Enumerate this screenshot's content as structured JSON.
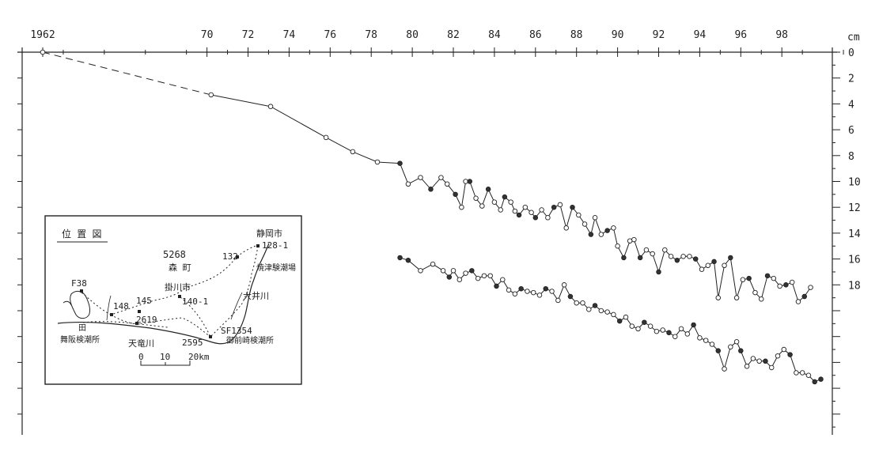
{
  "chart_data": {
    "type": "line",
    "x_tick_labels": [
      "1962",
      "70",
      "72",
      "74",
      "76",
      "78",
      "80",
      "82",
      "84",
      "86",
      "88",
      "90",
      "92",
      "94",
      "96",
      "98"
    ],
    "x_tick_values": [
      1962,
      1970,
      1972,
      1974,
      1976,
      1978,
      1980,
      1982,
      1984,
      1986,
      1988,
      1990,
      1992,
      1994,
      1996,
      1998
    ],
    "y_unit": "cm",
    "y_tick_labels": [
      "0",
      "2",
      "4",
      "6",
      "8",
      "10",
      "12",
      "14",
      "16",
      "18"
    ],
    "y_tick_values": [
      0,
      -2,
      -4,
      -6,
      -8,
      -10,
      -12,
      -14,
      -16,
      -18
    ],
    "xlim": [
      1962,
      2001.5
    ],
    "ylim": [
      -29,
      0
    ],
    "series": [
      {
        "dashed_segment": [
          [
            1962.0,
            0.0
          ],
          [
            1970.2,
            -3.3
          ]
        ],
        "points": [
          [
            1962.0,
            0.0
          ],
          [
            1970.2,
            -3.3
          ],
          [
            1973.1,
            -4.2
          ],
          [
            1975.8,
            -6.6
          ],
          [
            1977.1,
            -7.7
          ],
          [
            1978.3,
            -8.5
          ],
          [
            1979.4,
            -8.6
          ],
          [
            1979.8,
            -10.2
          ],
          [
            1980.4,
            -9.7
          ],
          [
            1980.9,
            -10.6
          ],
          [
            1981.4,
            -9.7
          ],
          [
            1981.7,
            -10.2
          ],
          [
            1982.1,
            -11.0
          ],
          [
            1982.4,
            -12.0
          ],
          [
            1982.6,
            -10.0
          ],
          [
            1982.8,
            -10.0
          ],
          [
            1983.1,
            -11.3
          ],
          [
            1983.4,
            -11.9
          ],
          [
            1983.7,
            -10.6
          ],
          [
            1984.0,
            -11.6
          ],
          [
            1984.3,
            -12.2
          ],
          [
            1984.5,
            -11.2
          ],
          [
            1984.8,
            -11.6
          ],
          [
            1985.0,
            -12.3
          ],
          [
            1985.2,
            -12.6
          ],
          [
            1985.5,
            -12.0
          ],
          [
            1985.8,
            -12.4
          ],
          [
            1986.0,
            -12.8
          ],
          [
            1986.3,
            -12.2
          ],
          [
            1986.6,
            -12.8
          ],
          [
            1986.9,
            -12.0
          ],
          [
            1987.2,
            -11.8
          ],
          [
            1987.5,
            -13.6
          ],
          [
            1987.8,
            -12.0
          ],
          [
            1988.1,
            -12.6
          ],
          [
            1988.4,
            -13.3
          ],
          [
            1988.7,
            -14.1
          ],
          [
            1988.9,
            -12.8
          ],
          [
            1989.2,
            -14.1
          ],
          [
            1989.5,
            -13.8
          ],
          [
            1989.8,
            -13.6
          ],
          [
            1990.0,
            -15.0
          ],
          [
            1990.3,
            -15.9
          ],
          [
            1990.6,
            -14.6
          ],
          [
            1990.8,
            -14.5
          ],
          [
            1991.1,
            -15.9
          ],
          [
            1991.4,
            -15.3
          ],
          [
            1991.7,
            -15.6
          ],
          [
            1992.0,
            -17.0
          ],
          [
            1992.3,
            -15.3
          ],
          [
            1992.6,
            -15.8
          ],
          [
            1992.9,
            -16.1
          ],
          [
            1993.2,
            -15.8
          ],
          [
            1993.5,
            -15.8
          ],
          [
            1993.8,
            -16.0
          ],
          [
            1994.1,
            -16.8
          ],
          [
            1994.4,
            -16.5
          ],
          [
            1994.7,
            -16.2
          ],
          [
            1994.9,
            -19.0
          ],
          [
            1995.2,
            -16.5
          ],
          [
            1995.5,
            -15.9
          ],
          [
            1995.8,
            -19.0
          ],
          [
            1996.1,
            -17.6
          ],
          [
            1996.4,
            -17.5
          ],
          [
            1996.7,
            -18.6
          ],
          [
            1997.0,
            -19.1
          ],
          [
            1997.3,
            -17.3
          ],
          [
            1997.6,
            -17.5
          ],
          [
            1997.9,
            -18.1
          ],
          [
            1998.2,
            -18.0
          ],
          [
            1998.5,
            -17.8
          ],
          [
            1998.8,
            -19.3
          ],
          [
            1999.1,
            -18.9
          ],
          [
            1999.4,
            -18.2
          ]
        ],
        "marker": "mixed open/filled circles"
      },
      {
        "points": [
          [
            1979.4,
            -15.9
          ],
          [
            1979.8,
            -16.1
          ],
          [
            1980.4,
            -16.9
          ],
          [
            1981.0,
            -16.4
          ],
          [
            1981.5,
            -16.9
          ],
          [
            1981.8,
            -17.4
          ],
          [
            1982.0,
            -16.9
          ],
          [
            1982.3,
            -17.6
          ],
          [
            1982.6,
            -17.1
          ],
          [
            1982.9,
            -16.9
          ],
          [
            1983.2,
            -17.5
          ],
          [
            1983.5,
            -17.3
          ],
          [
            1983.8,
            -17.3
          ],
          [
            1984.1,
            -18.1
          ],
          [
            1984.4,
            -17.6
          ],
          [
            1984.7,
            -18.4
          ],
          [
            1985.0,
            -18.7
          ],
          [
            1985.3,
            -18.3
          ],
          [
            1985.6,
            -18.5
          ],
          [
            1985.9,
            -18.6
          ],
          [
            1986.2,
            -18.8
          ],
          [
            1986.5,
            -18.3
          ],
          [
            1986.8,
            -18.5
          ],
          [
            1987.1,
            -19.2
          ],
          [
            1987.4,
            -18.0
          ],
          [
            1987.7,
            -18.9
          ],
          [
            1988.0,
            -19.4
          ],
          [
            1988.3,
            -19.4
          ],
          [
            1988.6,
            -19.9
          ],
          [
            1988.9,
            -19.6
          ],
          [
            1989.2,
            -20.0
          ],
          [
            1989.5,
            -20.1
          ],
          [
            1989.8,
            -20.3
          ],
          [
            1990.1,
            -20.8
          ],
          [
            1990.4,
            -20.5
          ],
          [
            1990.7,
            -21.2
          ],
          [
            1991.0,
            -21.4
          ],
          [
            1991.3,
            -20.9
          ],
          [
            1991.6,
            -21.2
          ],
          [
            1991.9,
            -21.6
          ],
          [
            1992.2,
            -21.5
          ],
          [
            1992.5,
            -21.7
          ],
          [
            1992.8,
            -22.0
          ],
          [
            1993.1,
            -21.4
          ],
          [
            1993.4,
            -21.8
          ],
          [
            1993.7,
            -21.1
          ],
          [
            1994.0,
            -22.1
          ],
          [
            1994.3,
            -22.3
          ],
          [
            1994.6,
            -22.6
          ],
          [
            1994.9,
            -23.1
          ],
          [
            1995.2,
            -24.5
          ],
          [
            1995.5,
            -22.8
          ],
          [
            1995.8,
            -22.4
          ],
          [
            1996.0,
            -23.1
          ],
          [
            1996.3,
            -24.3
          ],
          [
            1996.6,
            -23.7
          ],
          [
            1996.9,
            -23.9
          ],
          [
            1997.2,
            -23.9
          ],
          [
            1997.5,
            -24.4
          ],
          [
            1997.8,
            -23.5
          ],
          [
            1998.1,
            -23.0
          ],
          [
            1998.4,
            -23.4
          ],
          [
            1998.7,
            -24.8
          ],
          [
            1999.0,
            -24.8
          ],
          [
            1999.3,
            -25.0
          ],
          [
            1999.6,
            -25.5
          ],
          [
            1999.9,
            -25.3
          ]
        ],
        "marker": "mixed open/filled circles"
      }
    ]
  },
  "inset_map": {
    "title": "位 置 図",
    "labels": [
      {
        "text": "静岡市"
      },
      {
        "text": "128-1"
      },
      {
        "text": "132"
      },
      {
        "text": "焼津験潮場"
      },
      {
        "text": "5268"
      },
      {
        "text": "森 町"
      },
      {
        "text": "掛川市"
      },
      {
        "text": "140-1"
      },
      {
        "text": "大井川"
      },
      {
        "text": "F38"
      },
      {
        "text": "148"
      },
      {
        "text": "145"
      },
      {
        "text": "2619"
      },
      {
        "text": "SF1354"
      },
      {
        "text": "2595"
      },
      {
        "text": "御前崎検潮所"
      },
      {
        "text": "舞阪検潮所"
      },
      {
        "text": "天竜川"
      },
      {
        "text": "田"
      }
    ],
    "scale_labels": [
      "0",
      "10",
      "20km"
    ]
  }
}
